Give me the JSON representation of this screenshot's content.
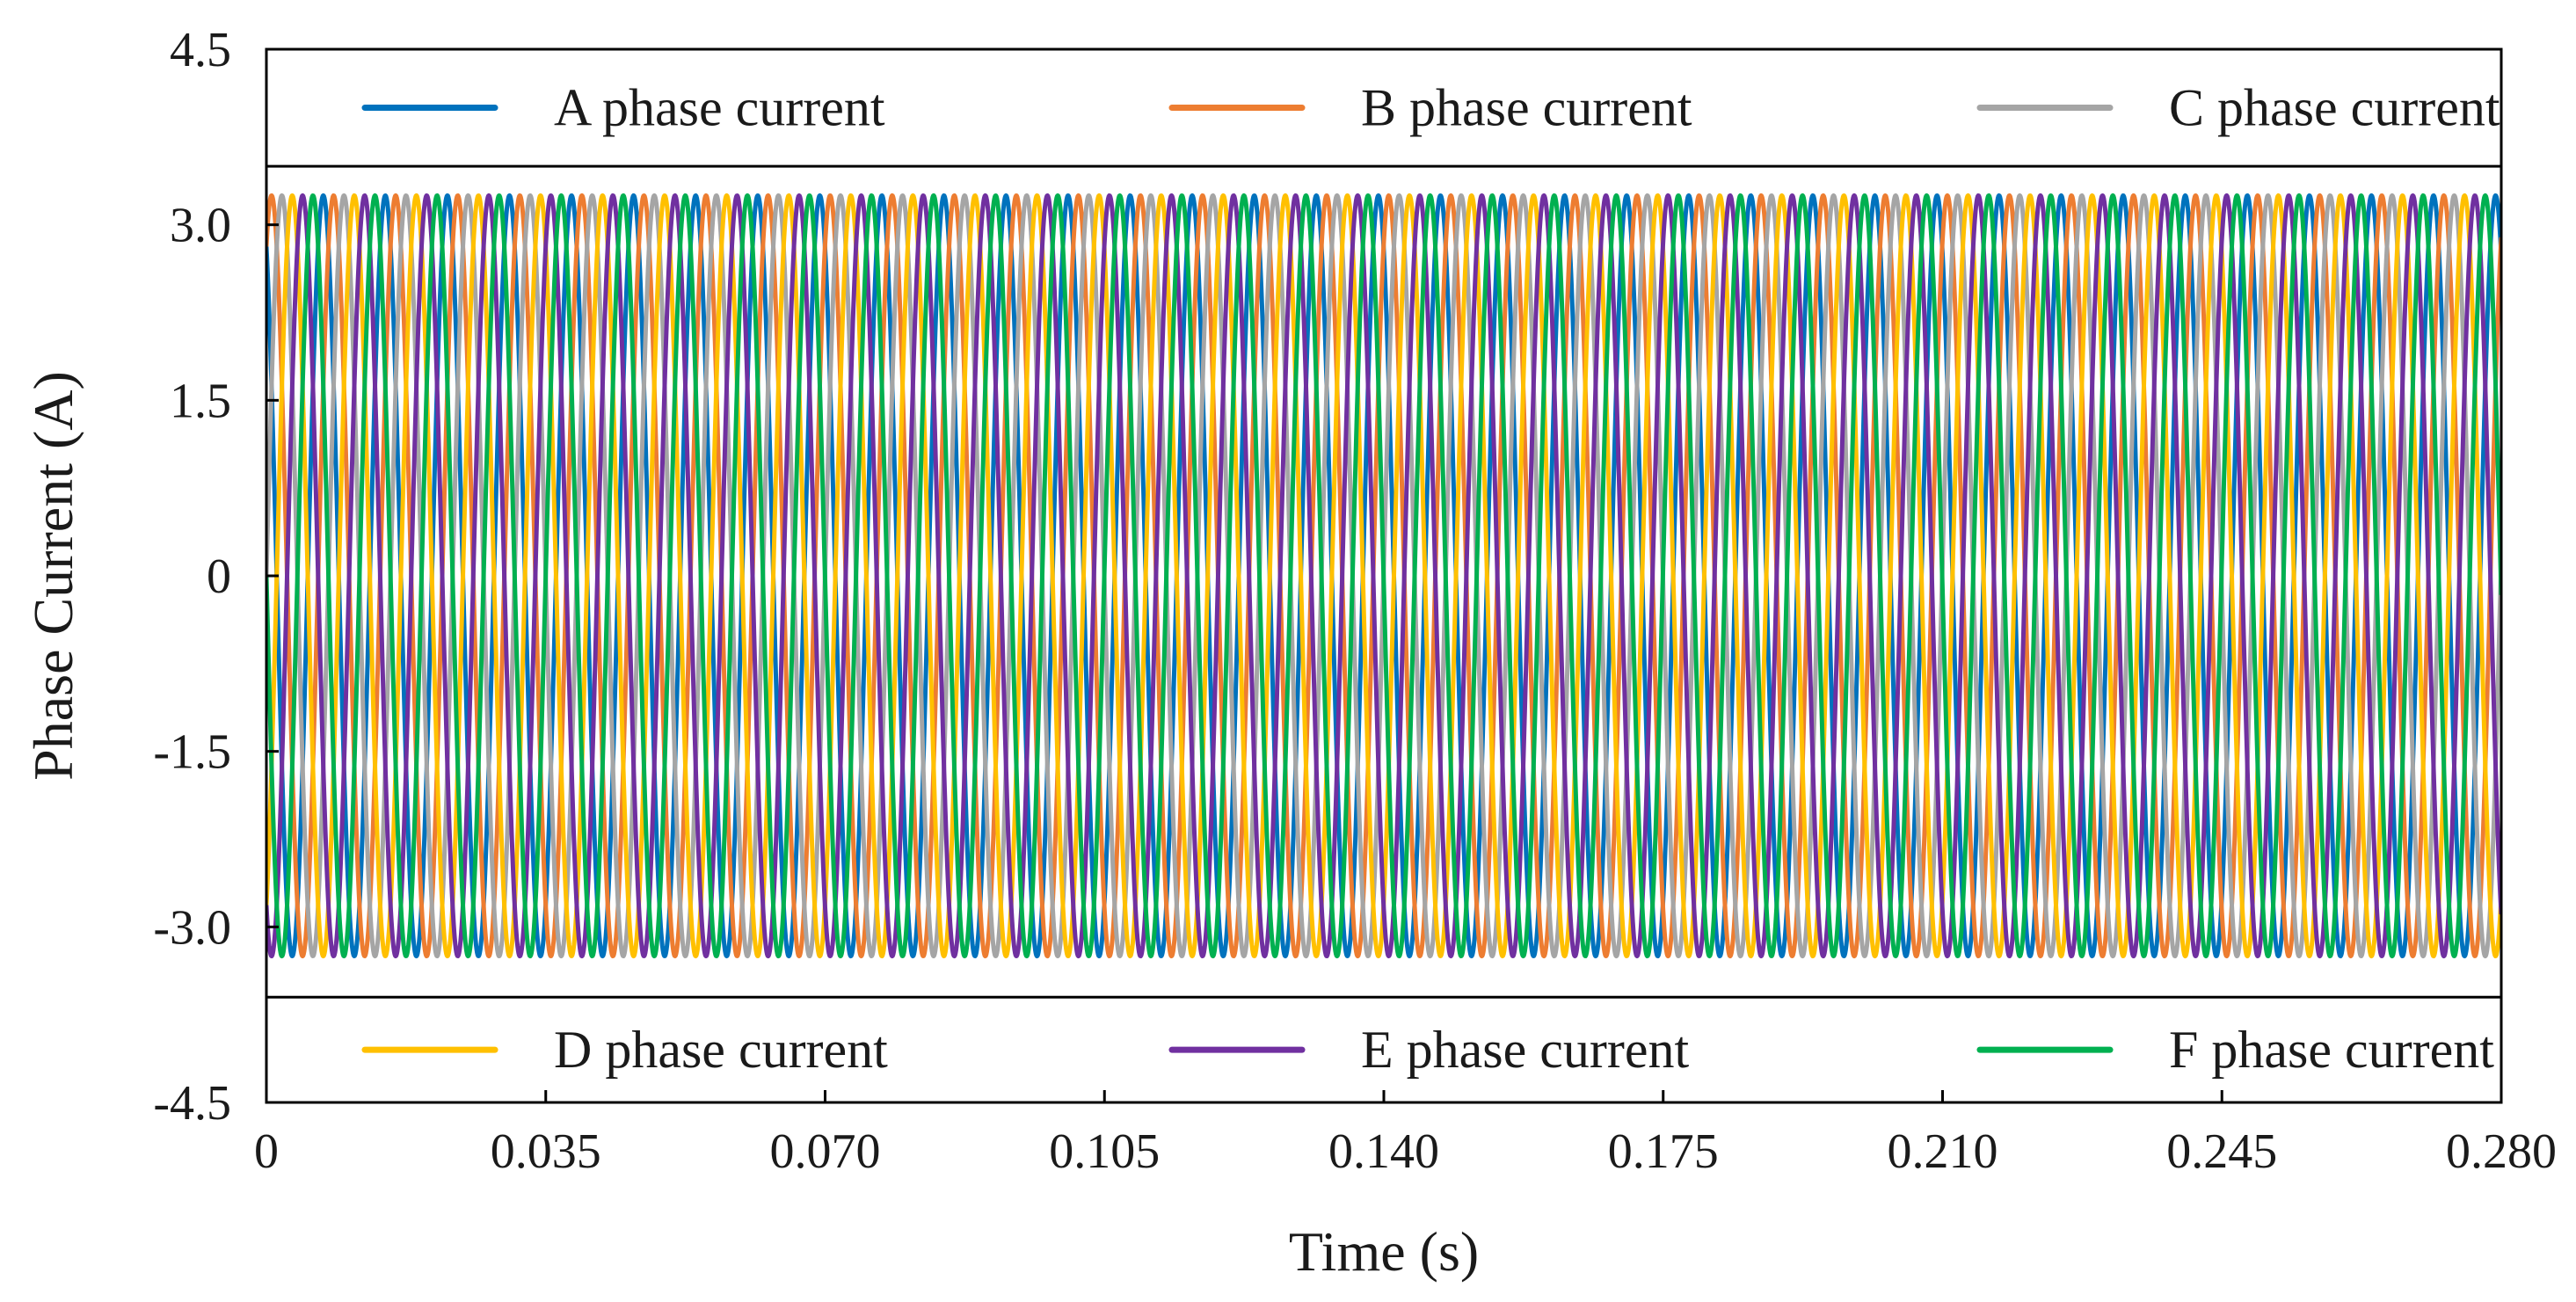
{
  "chart_data": {
    "type": "line",
    "title": "",
    "xlabel": "Time (s)",
    "ylabel": "Phase Current (A)",
    "xlim": [
      0,
      0.28
    ],
    "ylim": [
      -4.5,
      4.5
    ],
    "x_ticks": [
      "0",
      "0.035",
      "0.070",
      "0.105",
      "0.140",
      "0.175",
      "0.210",
      "0.245",
      "0.280"
    ],
    "x_tick_values": [
      0,
      0.035,
      0.07,
      0.105,
      0.14,
      0.175,
      0.21,
      0.245,
      0.28
    ],
    "y_ticks": [
      "4.5",
      "3.0",
      "1.5",
      "0",
      "-1.5",
      "-3.0",
      "-4.5"
    ],
    "y_tick_values": [
      4.5,
      3.0,
      1.5,
      0,
      -1.5,
      -3.0,
      -4.5
    ],
    "grid": false,
    "legend_position": "top and bottom bands inside plot",
    "legend_band_limits": {
      "top_band_from": 3.5,
      "bottom_band_to": -3.6
    },
    "series": [
      {
        "name": "A phase current",
        "color": "#0072BD",
        "amplitude": 3.25,
        "frequency_hz": 128.6,
        "phase_deg": 120
      },
      {
        "name": "B phase current",
        "color": "#ED7D31",
        "amplitude": 3.25,
        "frequency_hz": 128.6,
        "phase_deg": 60
      },
      {
        "name": "C phase current",
        "color": "#A5A5A5",
        "amplitude": 3.25,
        "frequency_hz": 128.6,
        "phase_deg": 0
      },
      {
        "name": "D phase current",
        "color": "#FFC000",
        "amplitude": 3.25,
        "frequency_hz": 128.6,
        "phase_deg": -60
      },
      {
        "name": "E phase current",
        "color": "#7030A0",
        "amplitude": 3.25,
        "frequency_hz": 128.6,
        "phase_deg": -120
      },
      {
        "name": "F phase current",
        "color": "#00B050",
        "amplitude": 3.25,
        "frequency_hz": 128.6,
        "phase_deg": 180
      }
    ]
  }
}
